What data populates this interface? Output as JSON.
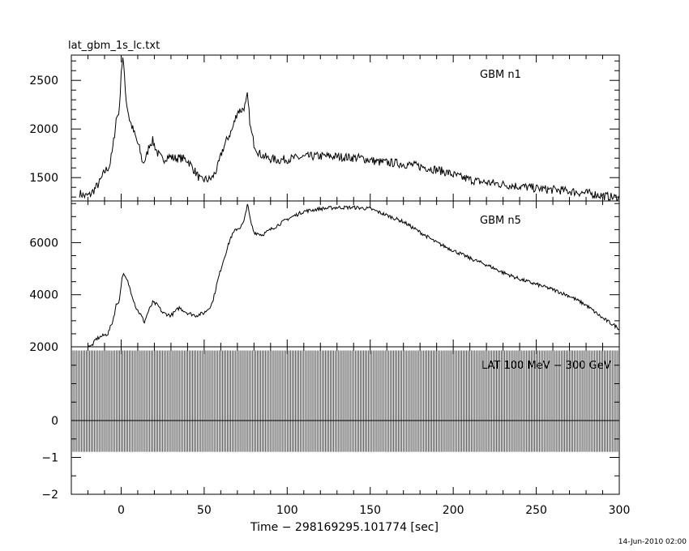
{
  "title": "lat_gbm_1s_lc.txt",
  "footer_date": "14-Jun-2010 02:00",
  "chart_data": {
    "type": "line",
    "xlabel": "Time − 298169295.101774 [sec]",
    "xlim": [
      -30,
      300
    ],
    "x_ticks": [
      0,
      50,
      100,
      150,
      200,
      250,
      300
    ],
    "x_tick_labels": [
      "0",
      "50",
      "100",
      "150",
      "200",
      "250",
      "300"
    ],
    "x_minor_step": 10,
    "panels": [
      {
        "name": "GBM n1",
        "ylim": [
          1260,
          2760
        ],
        "y_ticks": [
          1500,
          2000,
          2500
        ],
        "y_tick_labels": [
          "1500",
          "2000",
          "2500"
        ],
        "y_minor_step": 100,
        "noise": 45,
        "x": [
          -25,
          -22,
          -19,
          -16,
          -13,
          -10,
          -7,
          -5,
          -3,
          -1,
          0,
          1,
          2,
          3,
          5,
          8,
          11,
          13,
          15,
          17,
          19,
          22,
          25,
          28,
          32,
          36,
          40,
          45,
          48,
          50,
          53,
          55,
          58,
          61,
          64,
          67,
          70,
          73,
          75,
          76,
          78,
          80,
          83,
          88,
          95,
          105,
          115,
          125,
          135,
          145,
          155,
          165,
          175,
          185,
          195,
          205,
          215,
          225,
          235,
          245,
          255,
          265,
          275,
          285,
          295,
          300
        ],
        "values": [
          1340,
          1310,
          1320,
          1380,
          1450,
          1560,
          1620,
          1800,
          2100,
          2200,
          2600,
          2720,
          2550,
          2300,
          2100,
          1950,
          1800,
          1650,
          1700,
          1840,
          1880,
          1750,
          1680,
          1720,
          1700,
          1700,
          1680,
          1550,
          1470,
          1480,
          1480,
          1500,
          1600,
          1780,
          1900,
          2000,
          2180,
          2200,
          2250,
          2340,
          2000,
          1850,
          1750,
          1700,
          1680,
          1700,
          1720,
          1720,
          1710,
          1700,
          1660,
          1650,
          1630,
          1600,
          1560,
          1500,
          1460,
          1440,
          1420,
          1400,
          1380,
          1370,
          1350,
          1330,
          1300,
          1290
        ]
      },
      {
        "name": "GBM n5",
        "ylim": [
          2000,
          7600
        ],
        "y_ticks": [
          2000,
          4000,
          6000
        ],
        "y_tick_labels": [
          "2000",
          "4000",
          "6000"
        ],
        "y_minor_step": 500,
        "noise": 70,
        "x": [
          -20,
          -17,
          -15,
          -12,
          -8,
          -5,
          -3,
          -1,
          0,
          1,
          2,
          4,
          6,
          9,
          12,
          14,
          16,
          19,
          22,
          25,
          30,
          35,
          40,
          45,
          50,
          53,
          55,
          58,
          61,
          63,
          66,
          69,
          72,
          74,
          76,
          78,
          80,
          85,
          90,
          100,
          110,
          120,
          130,
          140,
          150,
          160,
          170,
          180,
          190,
          200,
          210,
          220,
          230,
          240,
          250,
          260,
          270,
          280,
          290,
          300
        ],
        "values": [
          1900,
          2100,
          2300,
          2400,
          2500,
          3000,
          3600,
          3800,
          4400,
          4800,
          4700,
          4500,
          4100,
          3500,
          3200,
          2950,
          3300,
          3700,
          3600,
          3300,
          3200,
          3500,
          3300,
          3200,
          3300,
          3500,
          3700,
          4500,
          5200,
          5600,
          6200,
          6500,
          6600,
          6800,
          7500,
          6800,
          6400,
          6300,
          6500,
          6900,
          7200,
          7300,
          7350,
          7350,
          7300,
          7050,
          6800,
          6400,
          6000,
          5700,
          5400,
          5150,
          4850,
          4600,
          4400,
          4200,
          3950,
          3600,
          3100,
          2700
        ]
      },
      {
        "name": "LAT 100 MeV − 300 GeV",
        "ylim": [
          -2,
          2
        ],
        "y_ticks": [
          -2,
          -1,
          0
        ],
        "y_tick_labels": [
          "−2",
          "−1",
          "0"
        ],
        "y_minor_step": 0.5,
        "bar_top": 1.9,
        "bar_bottom": -0.85,
        "bar_step": 1,
        "baseline": 0
      }
    ]
  }
}
